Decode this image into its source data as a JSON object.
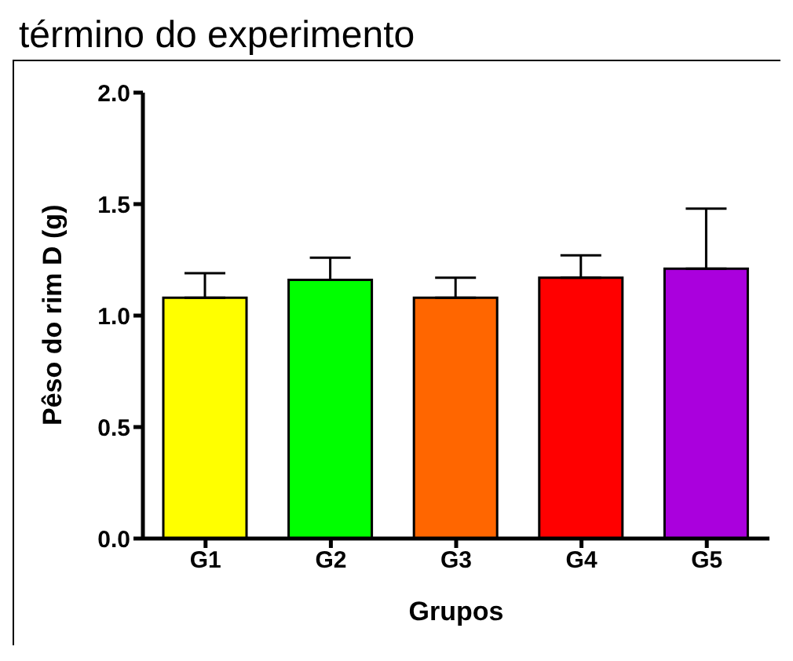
{
  "chart_data": {
    "type": "bar",
    "title": "término do experimento",
    "xlabel": "Grupos",
    "ylabel": "Pêso do rim D (g)",
    "categories": [
      "G1",
      "G2",
      "G3",
      "G4",
      "G5"
    ],
    "values": [
      1.08,
      1.16,
      1.08,
      1.17,
      1.21
    ],
    "errors": [
      0.11,
      0.1,
      0.09,
      0.1,
      0.27
    ],
    "colors": [
      "#ffff00",
      "#00ff00",
      "#ff6600",
      "#ff0000",
      "#aa00dd"
    ],
    "ylim": [
      0,
      2
    ],
    "yticks": [
      {
        "value": 0,
        "label": "0.0"
      },
      {
        "value": 0.5,
        "label": "0.5"
      },
      {
        "value": 1,
        "label": "1.0"
      },
      {
        "value": 1.5,
        "label": "1.5"
      },
      {
        "value": 2,
        "label": "2.0"
      }
    ],
    "grid": false,
    "legend": false
  }
}
